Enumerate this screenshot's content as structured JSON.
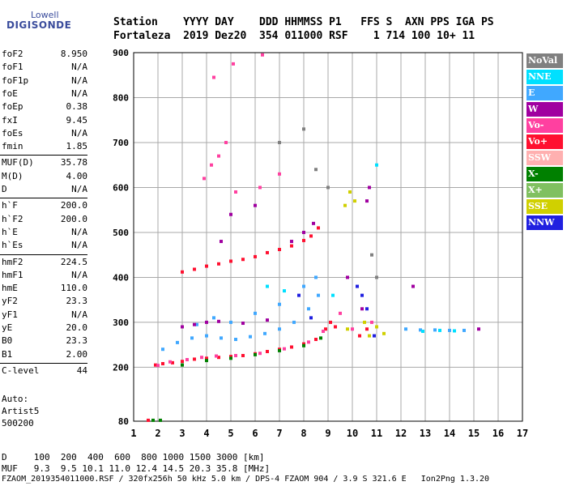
{
  "logo": {
    "line1": "Lowell",
    "line2": "DIGISONDE"
  },
  "header": {
    "line1": "Station    YYYY DAY    DDD HHMMSS P1   FFS S  AXN PPS IGA PS",
    "line2": "Fortaleza  2019 Dez20  354 011000 RSF    1 714 100 10+ 11"
  },
  "params": [
    {
      "k": "foF2",
      "v": "8.950"
    },
    {
      "k": "foF1",
      "v": "N/A"
    },
    {
      "k": "foF1p",
      "v": "N/A"
    },
    {
      "k": "foE",
      "v": "N/A"
    },
    {
      "k": "foEp",
      "v": "0.38"
    },
    {
      "k": "fxI",
      "v": "9.45"
    },
    {
      "k": "foEs",
      "v": "N/A"
    },
    {
      "k": "fmin",
      "v": "1.85"
    },
    {
      "k": "MUF(D)",
      "v": "35.78"
    },
    {
      "k": "M(D)",
      "v": "4.00"
    },
    {
      "k": "D",
      "v": "N/A"
    },
    {
      "k": "h`F",
      "v": "200.0"
    },
    {
      "k": "h`F2",
      "v": "200.0"
    },
    {
      "k": "h`E",
      "v": "N/A"
    },
    {
      "k": "h`Es",
      "v": "N/A"
    },
    {
      "k": "hmF2",
      "v": "224.5"
    },
    {
      "k": "hmF1",
      "v": "N/A"
    },
    {
      "k": "hmE",
      "v": "110.0"
    },
    {
      "k": "yF2",
      "v": "23.3"
    },
    {
      "k": "yF1",
      "v": "N/A"
    },
    {
      "k": "yE",
      "v": "20.0"
    },
    {
      "k": "B0",
      "v": "23.3"
    },
    {
      "k": "B1",
      "v": "2.00"
    },
    {
      "k": "C-level",
      "v": "44"
    }
  ],
  "auto": {
    "line1": "Auto:",
    "line2": "Artist5",
    "line3": "500200"
  },
  "footer": {
    "line1": "D     100  200  400  600  800 1000 1500 3000 [km]",
    "line2": "MUF   9.3  9.5 10.1 11.0 12.4 14.5 20.3 35.8 [MHz]",
    "line3": "FZAOM_2019354011000.RSF / 320fx256h 50 kHz 5.0 km / DPS-4 FZAOM 904 / 3.9 S 321.6 E   Ion2Png 1.3.20"
  },
  "legend": [
    {
      "label": "NoVal",
      "color": "#808080"
    },
    {
      "label": "NNE",
      "color": "#00e0ff"
    },
    {
      "label": "E",
      "color": "#40a8ff"
    },
    {
      "label": "W",
      "color": "#a000a0"
    },
    {
      "label": "Vo-",
      "color": "#ff40a0"
    },
    {
      "label": "Vo+",
      "color": "#ff1030"
    },
    {
      "label": "SSW",
      "color": "#ffb0b0"
    },
    {
      "label": "X-",
      "color": "#008000"
    },
    {
      "label": "X+",
      "color": "#80c060"
    },
    {
      "label": "SSE",
      "color": "#d0d000"
    },
    {
      "label": "NNW",
      "color": "#2020e0"
    }
  ],
  "chart_data": {
    "type": "scatter",
    "xlim": [
      1,
      17
    ],
    "ylim": [
      80,
      900
    ],
    "xticks": [
      1,
      2,
      3,
      4,
      5,
      6,
      7,
      8,
      9,
      10,
      11,
      12,
      13,
      14,
      15,
      16,
      17
    ],
    "yticks": [
      80,
      200,
      300,
      400,
      500,
      600,
      700,
      800,
      900
    ],
    "grid": true,
    "legend_position": "right",
    "series": [
      {
        "color": "#ff1030",
        "points": [
          [
            1.6,
            82
          ],
          [
            1.9,
            205
          ],
          [
            2.2,
            208
          ],
          [
            2.6,
            210
          ],
          [
            3.0,
            213
          ],
          [
            3.5,
            218
          ],
          [
            4.0,
            220
          ],
          [
            4.5,
            222
          ],
          [
            5.0,
            224
          ],
          [
            5.5,
            226
          ],
          [
            6.0,
            230
          ],
          [
            6.5,
            235
          ],
          [
            7.0,
            240
          ],
          [
            7.5,
            245
          ],
          [
            8.0,
            252
          ],
          [
            8.5,
            262
          ],
          [
            8.9,
            285
          ],
          [
            9.1,
            300
          ],
          [
            9.3,
            290
          ],
          [
            3.0,
            412
          ],
          [
            3.5,
            418
          ],
          [
            4.0,
            425
          ],
          [
            4.5,
            430
          ],
          [
            5.0,
            436
          ],
          [
            5.5,
            440
          ],
          [
            6.0,
            446
          ],
          [
            6.5,
            455
          ],
          [
            7.0,
            462
          ],
          [
            7.5,
            470
          ],
          [
            8.0,
            482
          ],
          [
            8.3,
            492
          ],
          [
            8.6,
            510
          ],
          [
            10.3,
            270
          ],
          [
            10.6,
            285
          ]
        ]
      },
      {
        "color": "#ff40a0",
        "points": [
          [
            2.0,
            204
          ],
          [
            2.5,
            212
          ],
          [
            3.2,
            217
          ],
          [
            3.8,
            222
          ],
          [
            4.4,
            225
          ],
          [
            5.2,
            226
          ],
          [
            6.2,
            231
          ],
          [
            7.2,
            241
          ],
          [
            8.2,
            256
          ],
          [
            8.8,
            280
          ],
          [
            9.5,
            320
          ],
          [
            10.0,
            285
          ],
          [
            3.9,
            620
          ],
          [
            4.2,
            650
          ],
          [
            4.5,
            670
          ],
          [
            4.8,
            700
          ],
          [
            5.2,
            590
          ],
          [
            6.2,
            600
          ],
          [
            7.0,
            630
          ],
          [
            4.3,
            845
          ],
          [
            5.1,
            875
          ],
          [
            6.3,
            895
          ],
          [
            10.8,
            300
          ]
        ]
      },
      {
        "color": "#40a8ff",
        "points": [
          [
            2.2,
            240
          ],
          [
            2.8,
            255
          ],
          [
            3.4,
            265
          ],
          [
            4.0,
            270
          ],
          [
            4.6,
            265
          ],
          [
            5.2,
            262
          ],
          [
            5.8,
            268
          ],
          [
            6.4,
            275
          ],
          [
            7.0,
            285
          ],
          [
            7.6,
            300
          ],
          [
            8.2,
            330
          ],
          [
            8.6,
            360
          ],
          [
            5.0,
            300
          ],
          [
            6.0,
            320
          ],
          [
            7.0,
            340
          ],
          [
            8.0,
            380
          ],
          [
            8.5,
            400
          ],
          [
            12.2,
            285
          ],
          [
            12.8,
            283
          ],
          [
            13.4,
            283
          ],
          [
            14.0,
            282
          ],
          [
            14.6,
            282
          ],
          [
            3.6,
            295
          ],
          [
            4.3,
            310
          ]
        ]
      },
      {
        "color": "#a000a0",
        "points": [
          [
            3.0,
            290
          ],
          [
            3.5,
            295
          ],
          [
            4.0,
            300
          ],
          [
            4.5,
            302
          ],
          [
            5.5,
            298
          ],
          [
            6.5,
            305
          ],
          [
            7.5,
            480
          ],
          [
            8.0,
            500
          ],
          [
            8.4,
            520
          ],
          [
            10.6,
            570
          ],
          [
            10.7,
            600
          ],
          [
            9.8,
            400
          ],
          [
            10.4,
            330
          ],
          [
            5.0,
            540
          ],
          [
            6.0,
            560
          ],
          [
            4.6,
            480
          ],
          [
            15.2,
            285
          ],
          [
            12.5,
            380
          ]
        ]
      },
      {
        "color": "#008000",
        "points": [
          [
            1.8,
            82
          ],
          [
            2.1,
            82
          ],
          [
            3.0,
            205
          ],
          [
            4.0,
            215
          ],
          [
            5.0,
            220
          ],
          [
            6.0,
            228
          ],
          [
            7.0,
            237
          ],
          [
            8.0,
            248
          ],
          [
            8.7,
            265
          ]
        ]
      },
      {
        "color": "#d0d000",
        "points": [
          [
            9.7,
            560
          ],
          [
            9.9,
            590
          ],
          [
            10.1,
            570
          ],
          [
            10.5,
            300
          ],
          [
            10.7,
            270
          ],
          [
            11.0,
            290
          ],
          [
            11.3,
            275
          ],
          [
            9.8,
            285
          ]
        ]
      },
      {
        "color": "#2020e0",
        "points": [
          [
            10.2,
            380
          ],
          [
            10.4,
            360
          ],
          [
            10.6,
            330
          ],
          [
            7.8,
            360
          ],
          [
            8.3,
            310
          ],
          [
            10.9,
            270
          ]
        ]
      },
      {
        "color": "#00e0ff",
        "points": [
          [
            12.9,
            280
          ],
          [
            13.6,
            282
          ],
          [
            14.2,
            281
          ],
          [
            11.0,
            650
          ],
          [
            9.2,
            360
          ],
          [
            6.5,
            380
          ],
          [
            7.2,
            370
          ]
        ]
      },
      {
        "color": "#808080",
        "points": [
          [
            7.0,
            700
          ],
          [
            8.0,
            730
          ],
          [
            8.5,
            640
          ],
          [
            9.0,
            600
          ],
          [
            10.8,
            450
          ],
          [
            11.0,
            400
          ]
        ]
      }
    ]
  }
}
